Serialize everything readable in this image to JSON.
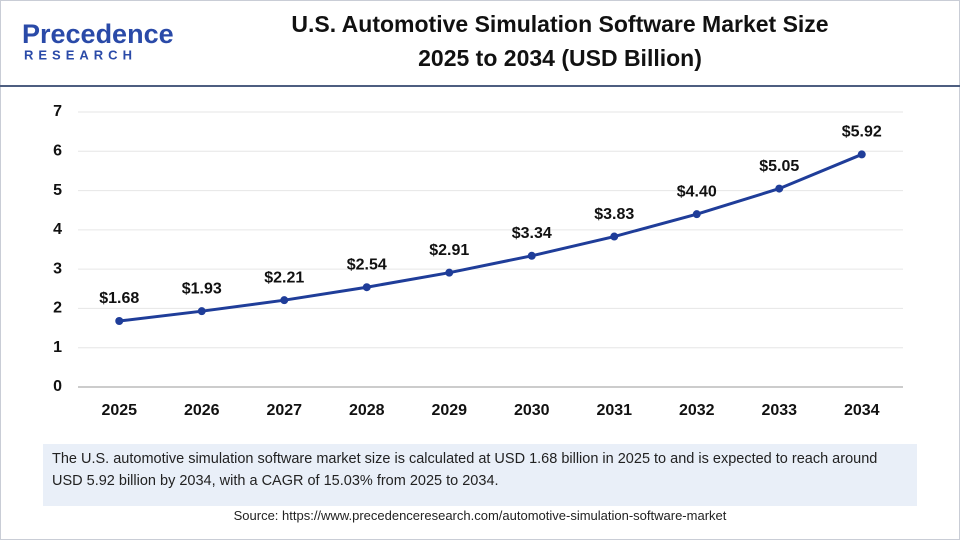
{
  "logo": {
    "name": "Precedence",
    "tagline": "RESEARCH"
  },
  "chart_data": {
    "type": "line",
    "title_lines": [
      "U.S. Automotive Simulation Software Market Size",
      "2025 to 2034 (USD Billion)"
    ],
    "categories": [
      "2025",
      "2026",
      "2027",
      "2028",
      "2029",
      "2030",
      "2031",
      "2032",
      "2033",
      "2034"
    ],
    "values": [
      1.68,
      1.93,
      2.21,
      2.54,
      2.91,
      3.34,
      3.83,
      4.4,
      5.05,
      5.92
    ],
    "value_labels": [
      "$1.68",
      "$1.93",
      "$2.21",
      "$2.54",
      "$2.91",
      "$3.34",
      "$3.83",
      "$4.40",
      "$5.05",
      "$5.92"
    ],
    "color": "#1f3d99",
    "ylim": [
      0,
      7
    ],
    "yticks": [
      0,
      1,
      2,
      3,
      4,
      5,
      6,
      7
    ],
    "grid": true
  },
  "description": "The U.S. automotive simulation software market size is calculated at USD 1.68 billion in 2025 to and is expected to reach around USD 5.92 billion by 2034, with a CAGR of 15.03% from 2025 to 2034.",
  "source": "Source: https://www.precedenceresearch.com/automotive-simulation-software-market"
}
